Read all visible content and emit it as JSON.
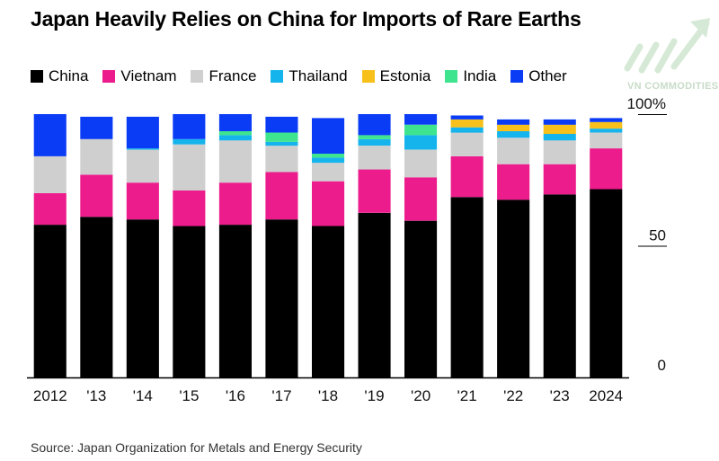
{
  "title": "Japan Heavily Relies on China for Imports of Rare Earths",
  "source": "Source: Japan Organization for Metals and Energy Security",
  "watermark": {
    "text": "VN COMMODITIES",
    "icon": "upward-arrow-logo-icon"
  },
  "chart_data": {
    "type": "bar",
    "stacked": true,
    "categories": [
      "2012",
      "'13",
      "'14",
      "'15",
      "'16",
      "'17",
      "'18",
      "'19",
      "'20",
      "'21",
      "'22",
      "'23",
      "2024"
    ],
    "ylim": [
      0,
      100
    ],
    "y_ticks": [
      {
        "value": 0,
        "label": "0"
      },
      {
        "value": 50,
        "label": "50"
      },
      {
        "value": 100,
        "label": "100%"
      }
    ],
    "legend_position": "top",
    "series": [
      {
        "name": "China",
        "color": "#000000",
        "values": [
          58,
          61,
          60,
          57.5,
          58,
          60,
          57.5,
          62.5,
          59.5,
          68.5,
          67.5,
          69.5,
          71.5
        ]
      },
      {
        "name": "Vietnam",
        "color": "#ec1c8c",
        "values": [
          12,
          16,
          14,
          13.5,
          16,
          18,
          17,
          16.5,
          16.5,
          15.5,
          13.5,
          11.5,
          15.5
        ]
      },
      {
        "name": "France",
        "color": "#cfcfcf",
        "values": [
          14,
          13.5,
          12.5,
          17.5,
          16,
          10,
          7,
          9,
          10.5,
          9,
          10,
          9,
          6
        ]
      },
      {
        "name": "Thailand",
        "color": "#16b4ec",
        "values": [
          0,
          0,
          0.5,
          2,
          2,
          1.5,
          2,
          2.5,
          5.5,
          2,
          2.5,
          2.5,
          1.5
        ]
      },
      {
        "name": "Estonia",
        "color": "#f7c01a",
        "values": [
          0,
          0,
          0,
          0,
          0,
          0,
          0,
          0,
          0,
          3,
          2.5,
          3.5,
          2.5
        ]
      },
      {
        "name": "India",
        "color": "#3ee48e",
        "values": [
          0,
          0,
          0,
          0,
          1.5,
          3.5,
          1.5,
          1.5,
          4,
          0,
          0,
          0,
          0
        ]
      },
      {
        "name": "Other",
        "color": "#0a3cf5",
        "values": [
          16,
          8.5,
          12,
          9.5,
          6.5,
          6,
          13.5,
          8,
          4,
          1.5,
          2,
          2,
          1.5
        ]
      }
    ]
  }
}
